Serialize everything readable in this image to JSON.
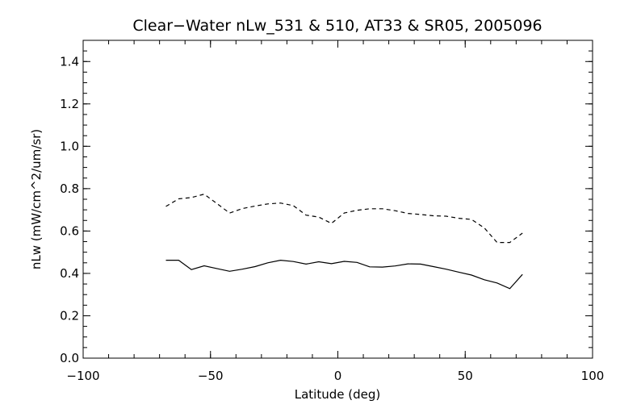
{
  "chart_data": {
    "type": "line",
    "title": "Clear−Water nLw_531 & 510, AT33 & SR05, 2005096",
    "xlabel": "Latitude (deg)",
    "ylabel": "nLw (mW/cm^2/um/sr)",
    "xlim": [
      -100,
      100
    ],
    "ylim": [
      0.0,
      1.5
    ],
    "x_ticks": [
      -100,
      -50,
      0,
      50,
      100
    ],
    "x_tick_labels": [
      "−100",
      "−50",
      "0",
      "50",
      "100"
    ],
    "y_ticks": [
      0.0,
      0.2,
      0.4,
      0.6,
      0.8,
      1.0,
      1.2,
      1.4
    ],
    "y_tick_labels": [
      "0.0",
      "0.2",
      "0.4",
      "0.6",
      "0.8",
      "1.0",
      "1.2",
      "1.4"
    ],
    "grid": false,
    "series": [
      {
        "style": "solid",
        "color": "#000000",
        "x": [
          -67.5,
          -62.5,
          -57.5,
          -52.5,
          -47.5,
          -42.5,
          -37.5,
          -32.5,
          -27.5,
          -22.5,
          -17.5,
          -12.5,
          -7.5,
          -2.5,
          2.5,
          7.5,
          12.5,
          17.5,
          22.5,
          27.5,
          32.5,
          37.5,
          42.5,
          47.5,
          52.5,
          57.5,
          62.5,
          67.5,
          72.5
        ],
        "y": [
          0.462,
          0.462,
          0.418,
          0.436,
          0.423,
          0.41,
          0.42,
          0.432,
          0.45,
          0.462,
          0.456,
          0.444,
          0.455,
          0.446,
          0.457,
          0.452,
          0.431,
          0.43,
          0.435,
          0.445,
          0.444,
          0.432,
          0.42,
          0.406,
          0.392,
          0.37,
          0.355,
          0.328,
          0.395
        ]
      },
      {
        "style": "dashed",
        "color": "#000000",
        "x": [
          -67.5,
          -62.5,
          -57.5,
          -52.5,
          -47.5,
          -42.5,
          -37.5,
          -32.5,
          -27.5,
          -22.5,
          -17.5,
          -12.5,
          -7.5,
          -2.5,
          2.5,
          7.5,
          12.5,
          17.5,
          22.5,
          27.5,
          32.5,
          37.5,
          42.5,
          47.5,
          52.5,
          57.5,
          62.5,
          67.5,
          72.5
        ],
        "y": [
          0.716,
          0.752,
          0.758,
          0.774,
          0.73,
          0.685,
          0.706,
          0.718,
          0.728,
          0.732,
          0.72,
          0.675,
          0.666,
          0.636,
          0.685,
          0.698,
          0.705,
          0.705,
          0.696,
          0.683,
          0.678,
          0.672,
          0.67,
          0.66,
          0.655,
          0.615,
          0.546,
          0.546,
          0.59
        ]
      }
    ]
  }
}
